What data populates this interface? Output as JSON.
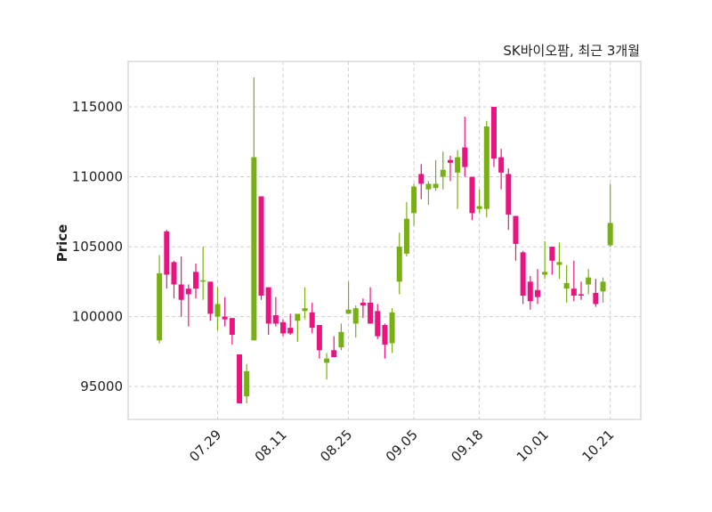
{
  "chart_data": {
    "type": "candlestick",
    "title": "SK바이오팜, 최근 3개월",
    "xlabel": "",
    "ylabel": "Price",
    "ylim": [
      92650,
      118250
    ],
    "xlim": [
      -4.3,
      66.2
    ],
    "grid": true,
    "colors": {
      "up": "#78b014",
      "down": "#ea1480",
      "frame": "#d8d8d8",
      "grid": "#cfcfcf"
    },
    "yticks": [
      95000,
      100000,
      105000,
      110000,
      115000
    ],
    "ytick_labels": [
      "95000",
      "100000",
      "105000",
      "110000",
      "115000"
    ],
    "xticks": [
      {
        "index": 8,
        "label": "07.29"
      },
      {
        "index": 17,
        "label": "08.11"
      },
      {
        "index": 26,
        "label": "08.25"
      },
      {
        "index": 35,
        "label": "09.05"
      },
      {
        "index": 44,
        "label": "09.18"
      },
      {
        "index": 53,
        "label": "10.01"
      },
      {
        "index": 62,
        "label": "10.21"
      }
    ],
    "candles_ohlc": [
      [
        98300,
        104400,
        98100,
        103100
      ],
      [
        106100,
        106200,
        102000,
        103000
      ],
      [
        103900,
        104000,
        101300,
        102300
      ],
      [
        102300,
        104300,
        100000,
        101200
      ],
      [
        102000,
        102300,
        99300,
        101600
      ],
      [
        103200,
        103800,
        101300,
        102000
      ],
      [
        102500,
        105000,
        101200,
        102600
      ],
      [
        102500,
        102500,
        99700,
        100200
      ],
      [
        100000,
        102100,
        99000,
        100900
      ],
      [
        100000,
        101400,
        99300,
        99800
      ],
      [
        99900,
        99900,
        98000,
        98700
      ],
      [
        97300,
        97300,
        93800,
        93800
      ],
      [
        94300,
        96600,
        93800,
        96100
      ],
      [
        98300,
        117100,
        98300,
        111400
      ],
      [
        108600,
        108600,
        101200,
        101500
      ],
      [
        102100,
        102100,
        98700,
        99500
      ],
      [
        100100,
        101400,
        99300,
        99500
      ],
      [
        99600,
        99800,
        98600,
        98800
      ],
      [
        99200,
        100200,
        98700,
        98800
      ],
      [
        99700,
        100200,
        98200,
        100200
      ],
      [
        100400,
        102100,
        99800,
        100600
      ],
      [
        100300,
        101000,
        98800,
        99200
      ],
      [
        99400,
        99400,
        97000,
        97600
      ],
      [
        96700,
        97400,
        95500,
        97000
      ],
      [
        97600,
        98600,
        97100,
        97100
      ],
      [
        97800,
        99500,
        97600,
        98900
      ],
      [
        100200,
        102500,
        100200,
        100500
      ],
      [
        99500,
        100800,
        98500,
        100600
      ],
      [
        101000,
        101300,
        99900,
        100800
      ],
      [
        101000,
        102100,
        99500,
        99500
      ],
      [
        100400,
        100900,
        98400,
        98600
      ],
      [
        99400,
        99500,
        97000,
        98000
      ],
      [
        98100,
        100600,
        97400,
        100300
      ],
      [
        102500,
        106000,
        101600,
        105000
      ],
      [
        104500,
        108200,
        104300,
        107000
      ],
      [
        107400,
        109500,
        106500,
        109300
      ],
      [
        110200,
        110900,
        108400,
        109500
      ],
      [
        109100,
        109700,
        108000,
        109500
      ],
      [
        109200,
        111200,
        109000,
        109500
      ],
      [
        110000,
        111800,
        109100,
        110500
      ],
      [
        111200,
        111500,
        109700,
        111000
      ],
      [
        110300,
        111900,
        107700,
        111400
      ],
      [
        112100,
        114300,
        110000,
        110700
      ],
      [
        110000,
        110000,
        106900,
        107400
      ],
      [
        107700,
        109100,
        107400,
        107900
      ],
      [
        107700,
        114000,
        107100,
        113600
      ],
      [
        115000,
        115000,
        110700,
        111300
      ],
      [
        111400,
        112000,
        109100,
        110300
      ],
      [
        110200,
        110600,
        106200,
        107300
      ],
      [
        107200,
        107200,
        104000,
        105200
      ],
      [
        104600,
        104700,
        100900,
        101500
      ],
      [
        102500,
        102900,
        100500,
        101100
      ],
      [
        101900,
        103400,
        100900,
        101400
      ],
      [
        103000,
        105400,
        102700,
        103200
      ],
      [
        105000,
        105000,
        103000,
        104000
      ],
      [
        103700,
        105300,
        102700,
        103900
      ],
      [
        102000,
        103700,
        101000,
        102400
      ],
      [
        102000,
        104000,
        101100,
        101500
      ],
      [
        101600,
        102500,
        101200,
        101500
      ],
      [
        102300,
        103400,
        101600,
        102800
      ],
      [
        101700,
        102700,
        100700,
        100900
      ],
      [
        101800,
        102800,
        101000,
        102500
      ],
      [
        105100,
        109500,
        105000,
        106700
      ]
    ]
  }
}
